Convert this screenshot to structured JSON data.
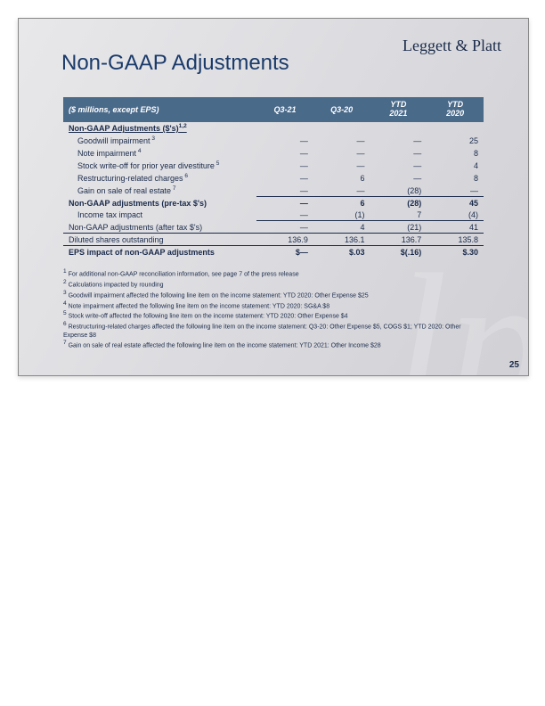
{
  "brand": "Leggett & Platt",
  "title": "Non-GAAP Adjustments",
  "page_number": "25",
  "table": {
    "header": {
      "label": "($ millions, except EPS)",
      "cols": [
        "Q3-21",
        "Q3-20",
        "YTD\n2021",
        "YTD\n2020"
      ]
    },
    "section_label": "Non-GAAP Adjustments ($'s)",
    "section_sup": "1,2",
    "rows": [
      {
        "label": "Goodwill impairment",
        "sup": "3",
        "indent": true,
        "vals": [
          "—",
          "—",
          "—",
          "25"
        ]
      },
      {
        "label": "Note impairment",
        "sup": "4",
        "indent": true,
        "vals": [
          "—",
          "—",
          "—",
          "8"
        ]
      },
      {
        "label": "Stock write-off for prior year divestiture",
        "sup": "5",
        "indent": true,
        "vals": [
          "—",
          "—",
          "—",
          "4"
        ]
      },
      {
        "label": "Restructuring-related charges",
        "sup": "6",
        "indent": true,
        "vals": [
          "—",
          "6",
          "—",
          "8"
        ]
      },
      {
        "label": "Gain on sale of real estate",
        "sup": "7",
        "indent": true,
        "vals": [
          "—",
          "—",
          "(28)",
          "—"
        ],
        "bottom_border": true
      },
      {
        "label": "Non-GAAP adjustments (pre-tax $'s)",
        "bold": true,
        "vals": [
          "—",
          "6",
          "(28)",
          "45"
        ]
      },
      {
        "label": "Income tax impact",
        "indent": true,
        "vals": [
          "—",
          "(1)",
          "7",
          "(4)"
        ],
        "bottom_border": true
      },
      {
        "label": "Non-GAAP adjustments (after tax $'s)",
        "vals": [
          "—",
          "4",
          "(21)",
          "41"
        ]
      },
      {
        "label": "Diluted shares outstanding",
        "top_border": true,
        "vals": [
          "136.9",
          "136.1",
          "136.7",
          "135.8"
        ]
      },
      {
        "label": "EPS impact of non-GAAP adjustments",
        "bold": true,
        "top_border": true,
        "vals": [
          "$—",
          "$.03",
          "$(.16)",
          "$.30"
        ]
      }
    ]
  },
  "footnotes": [
    "For additional non-GAAP reconciliation information, see page 7 of the press release",
    "Calculations impacted by rounding",
    "Goodwill impairment affected the following line item on the income statement: YTD 2020: Other Expense $25",
    "Note impairment affected the following line item on the income statement: YTD 2020: SG&A $8",
    "Stock write-off affected the following line item on the income statement: YTD 2020: Other Expense $4",
    "Restructuring-related charges affected the following line item on the income statement: Q3-20: Other Expense $5, COGS $1; YTD 2020: Other Expense $8",
    "Gain on sale of real estate affected the following line item on the income statement: YTD 2021: Other Income $28"
  ],
  "colors": {
    "header_bg": "#4a6a8a",
    "text": "#1a2a4a",
    "title": "#1a3a6a"
  }
}
